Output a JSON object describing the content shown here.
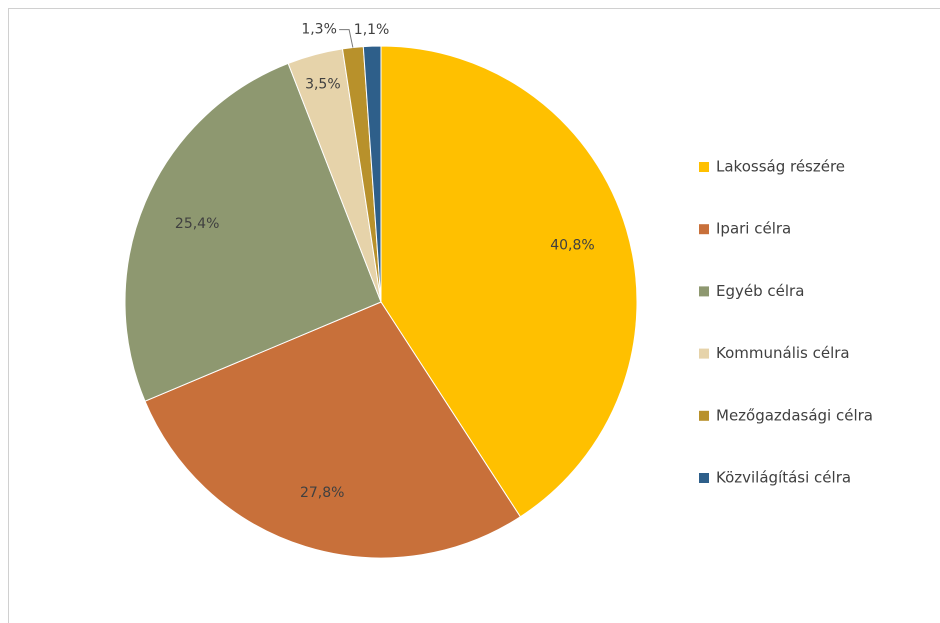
{
  "chart_data": {
    "type": "pie",
    "categories": [
      "Lakosság részére",
      "Ipari célra",
      "Egyéb célra",
      "Kommunális célra",
      "Mezőgazdasági célra",
      "Közvilágítási célra"
    ],
    "values": [
      40.8,
      27.8,
      25.4,
      3.5,
      1.3,
      1.1
    ],
    "value_labels": [
      "40,8%",
      "27,8%",
      "25,4%",
      "3,5%",
      "1,3%",
      "1,1%"
    ],
    "colors": [
      "#ffc000",
      "#c8703a",
      "#8e9870",
      "#e6d3aa",
      "#b8912b",
      "#2e5f8a"
    ],
    "legend": "right"
  }
}
